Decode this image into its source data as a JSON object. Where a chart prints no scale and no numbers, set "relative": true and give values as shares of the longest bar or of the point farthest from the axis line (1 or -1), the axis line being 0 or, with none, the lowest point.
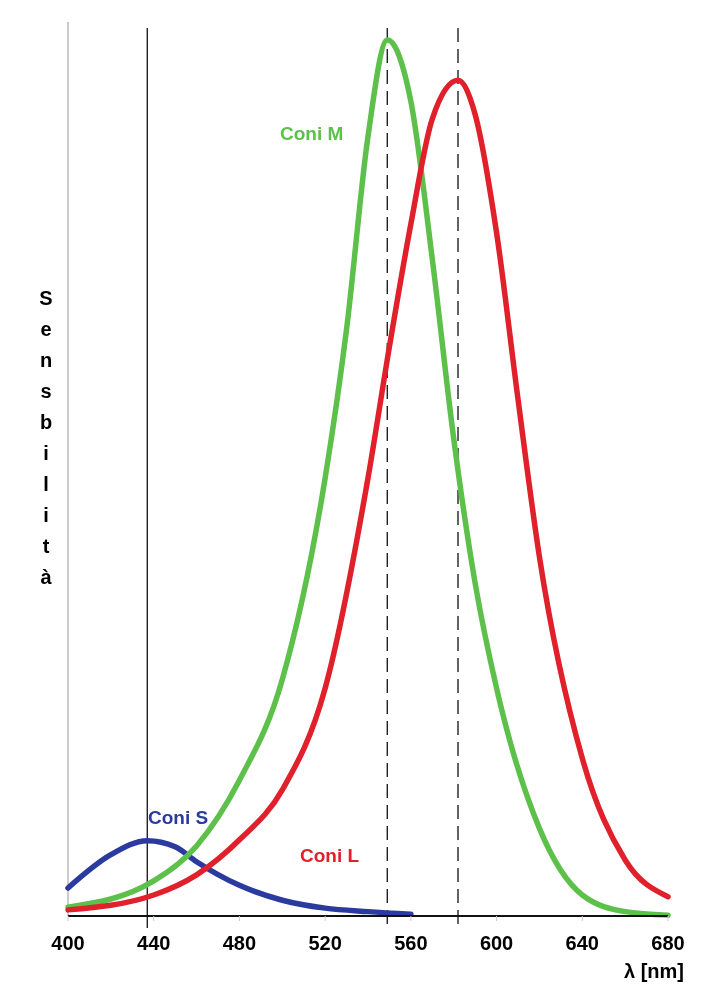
{
  "chart_data": {
    "type": "line",
    "relative": true,
    "xlabel": "λ [nm]",
    "ylabel": "Sensbilità",
    "xlim": [
      400,
      680
    ],
    "xticks": [
      400,
      440,
      480,
      520,
      560,
      600,
      640,
      680
    ],
    "series": [
      {
        "name": "Coni S",
        "color": "#2b3a9e",
        "x": [
          400,
          420,
          437,
          450,
          460,
          480,
          500,
          520,
          540,
          560
        ],
        "values": [
          0.032,
          0.07,
          0.086,
          0.079,
          0.062,
          0.035,
          0.018,
          0.009,
          0.005,
          0.002
        ]
      },
      {
        "name": "Coni M",
        "color": "#5cc04a",
        "x": [
          400,
          440,
          460,
          480,
          500,
          520,
          530,
          540,
          549,
          560,
          570,
          580,
          590,
          600,
          620,
          640,
          660,
          680
        ],
        "values": [
          0.01,
          0.04,
          0.08,
          0.155,
          0.27,
          0.5,
          0.67,
          0.89,
          1,
          0.93,
          0.75,
          0.545,
          0.38,
          0.26,
          0.1,
          0.024,
          0.005,
          0.001
        ]
      },
      {
        "name": "Coni L",
        "color": "#e0202a",
        "x": [
          400,
          440,
          460,
          480,
          500,
          520,
          540,
          550,
          560,
          570,
          582,
          590,
          600,
          610,
          620,
          640,
          660,
          680
        ],
        "values": [
          0.007,
          0.024,
          0.047,
          0.087,
          0.144,
          0.26,
          0.5,
          0.65,
          0.79,
          0.91,
          0.954,
          0.915,
          0.78,
          0.59,
          0.41,
          0.18,
          0.064,
          0.022
        ]
      }
    ],
    "ref_lines": [
      {
        "axis": "x",
        "value": 437,
        "line_style": "solid"
      },
      {
        "axis": "x",
        "value": 549,
        "line_style": "dashed"
      },
      {
        "axis": "x",
        "value": 582,
        "line_style": "dashed"
      }
    ]
  }
}
